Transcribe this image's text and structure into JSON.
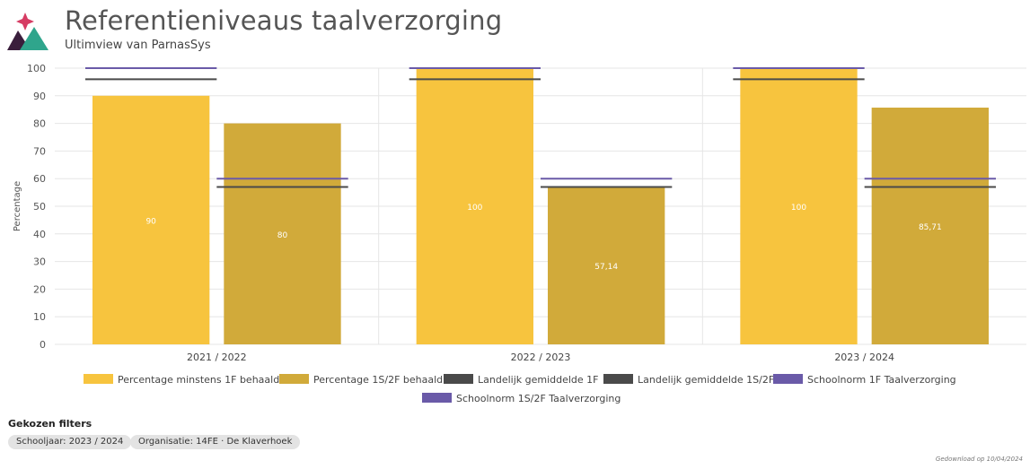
{
  "header": {
    "title": "Referentieniveaus taalverzorging",
    "subtitle": "Ultimview van ParnasSys"
  },
  "colors": {
    "bar1F": "#f7c43e",
    "bar1S2F": "#d1aa3a",
    "landelijk": "#4a4a4a",
    "schoolnorm": "#6a5aa8",
    "logo_pink": "#d63c63",
    "logo_teal": "#2fa58c",
    "logo_dark": "#3a1e3c"
  },
  "chart_data": {
    "type": "bar",
    "ylabel": "Percentage",
    "ylim": [
      0,
      100
    ],
    "yticks": [
      0,
      10,
      20,
      30,
      40,
      50,
      60,
      70,
      80,
      90,
      100
    ],
    "grid": true,
    "legend_position": "bottom",
    "categories": [
      "2021 / 2022",
      "2022 / 2023",
      "2023 / 2024"
    ],
    "series": [
      {
        "name": "Percentage minstens 1F behaald",
        "kind": "bar",
        "color": "#f7c43e",
        "values": [
          90,
          100,
          100
        ],
        "labels": [
          "90",
          "100",
          "100"
        ]
      },
      {
        "name": "Percentage 1S/2F behaald",
        "kind": "bar",
        "color": "#d1aa3a",
        "values": [
          80,
          57.14,
          85.71
        ],
        "labels": [
          "80",
          "57,14",
          "85,71"
        ]
      },
      {
        "name": "Landelijk gemiddelde 1F",
        "kind": "line",
        "color": "#4a4a4a",
        "values": [
          96,
          96,
          96
        ]
      },
      {
        "name": "Landelijk gemiddelde 1S/2F",
        "kind": "line",
        "color": "#4a4a4a",
        "values": [
          57,
          57,
          57
        ]
      },
      {
        "name": "Schoolnorm 1F Taalverzorging",
        "kind": "line",
        "color": "#6a5aa8",
        "values": [
          100,
          100,
          100
        ]
      },
      {
        "name": "Schoolnorm 1S/2F Taalverzorging",
        "kind": "line",
        "color": "#6a5aa8",
        "values": [
          60,
          60,
          60
        ]
      }
    ]
  },
  "filters": {
    "title": "Gekozen filters",
    "chips": [
      "Schooljaar: 2023 / 2024",
      "Organisatie: 14FE · De Klaverhoek"
    ]
  },
  "footer": {
    "download": "Gedownload op 10/04/2024"
  }
}
